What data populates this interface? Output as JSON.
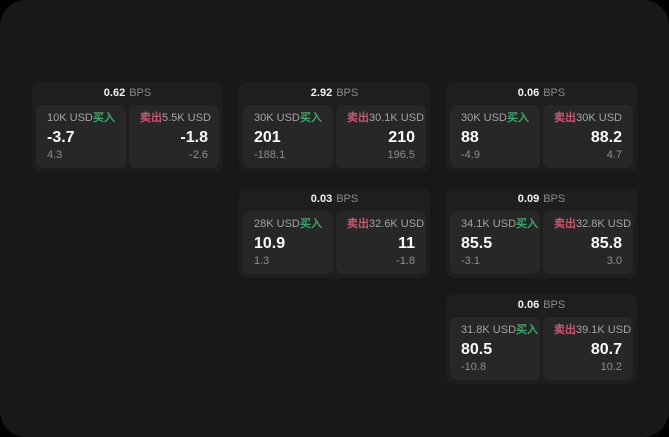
{
  "colors": {
    "background": "#181818",
    "card": "#1e1e1e",
    "panel": "#272727",
    "buy_accent": "#3fa46a",
    "sell_accent": "#c75670"
  },
  "cards": [
    {
      "spread": "0.62",
      "spread_unit": "BPS",
      "buy": {
        "amount": "10K USD",
        "label": "买入",
        "price": "-3.7",
        "change": "4.3"
      },
      "sell": {
        "amount": "5.5K USD",
        "label": "卖出",
        "price": "-1.8",
        "change": "-2.6"
      }
    },
    {
      "spread": "2.92",
      "spread_unit": "BPS",
      "buy": {
        "amount": "30K USD",
        "label": "买入",
        "price": "201",
        "change": "-188.1"
      },
      "sell": {
        "amount": "30.1K USD",
        "label": "卖出",
        "price": "210",
        "change": "196.5"
      }
    },
    {
      "spread": "0.06",
      "spread_unit": "BPS",
      "buy": {
        "amount": "30K USD",
        "label": "买入",
        "price": "88",
        "change": "-4.9"
      },
      "sell": {
        "amount": "30K USD",
        "label": "卖出",
        "price": "88.2",
        "change": "4.7"
      }
    },
    {
      "spread": "0.03",
      "spread_unit": "BPS",
      "buy": {
        "amount": "28K USD",
        "label": "买入",
        "price": "10.9",
        "change": "1.3"
      },
      "sell": {
        "amount": "32.6K USD",
        "label": "卖出",
        "price": "11",
        "change": "-1.8"
      }
    },
    {
      "spread": "0.09",
      "spread_unit": "BPS",
      "buy": {
        "amount": "34.1K USD",
        "label": "买入",
        "price": "85.5",
        "change": "-3.1"
      },
      "sell": {
        "amount": "32.8K USD",
        "label": "卖出",
        "price": "85.8",
        "change": "3.0"
      }
    },
    {
      "spread": "0.06",
      "spread_unit": "BPS",
      "buy": {
        "amount": "31.8K USD",
        "label": "买入",
        "price": "80.5",
        "change": "-10.8"
      },
      "sell": {
        "amount": "39.1K USD",
        "label": "卖出",
        "price": "80.7",
        "change": "10.2"
      }
    }
  ]
}
